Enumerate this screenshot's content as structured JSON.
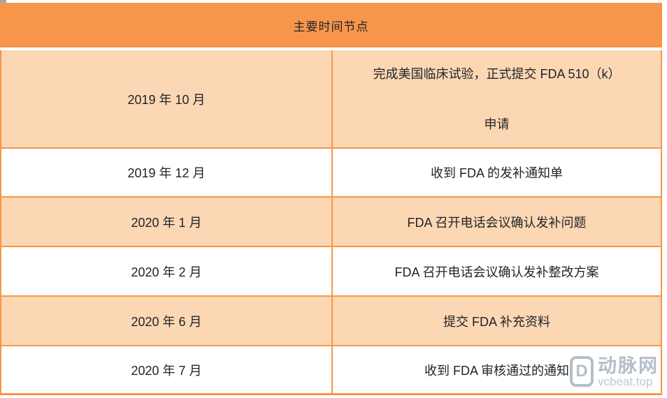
{
  "chart_data": {
    "type": "table",
    "title": "主要时间节点",
    "rows": [
      {
        "date": "2019 年 10 月",
        "event": "完成美国临床试验，正式提交 FDA 510（k）申请",
        "event_lines": [
          "完成美国临床试验，正式提交 FDA 510（k）",
          "申请"
        ]
      },
      {
        "date": "2019 年 12 月",
        "event": "收到 FDA 的发补通知单",
        "event_lines": [
          "收到 FDA 的发补通知单"
        ]
      },
      {
        "date": "2020 年 1 月",
        "event": "FDA 召开电话会议确认发补问题",
        "event_lines": [
          "FDA 召开电话会议确认发补问题"
        ]
      },
      {
        "date": "2020 年 2 月",
        "event": "FDA 召开电话会议确认发补整改方案",
        "event_lines": [
          "FDA 召开电话会议确认发补整改方案"
        ]
      },
      {
        "date": "2020 年 6 月",
        "event": "提交 FDA 补充资料",
        "event_lines": [
          "提交 FDA 补充资料"
        ]
      },
      {
        "date": "2020 年 7 月",
        "event": "收到 FDA 审核通过的通知",
        "event_lines": [
          "收到 FDA 审核通过的通知"
        ]
      }
    ]
  },
  "watermark": {
    "brand": "动脉网",
    "site": "vcbeat.top",
    "logo_letter": "D"
  },
  "colors": {
    "header_orange": "#F7964A",
    "row_peach": "#FCD7B4",
    "border_orange": "#F79646",
    "text_dark": "#1F2328",
    "watermark_gray": "#9FADBB"
  }
}
